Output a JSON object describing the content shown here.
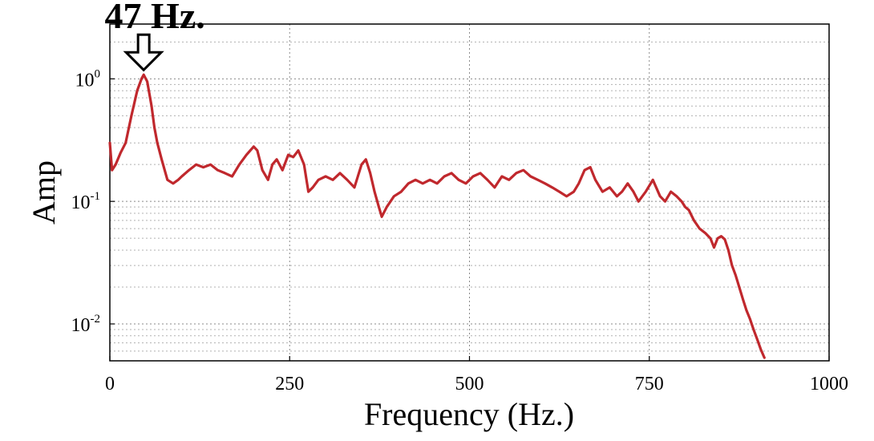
{
  "chart_data": {
    "type": "line",
    "title": "",
    "xlabel": "Frequency (Hz.)",
    "ylabel": "Amp",
    "xlim": [
      0,
      1000
    ],
    "ylim": [
      0.005,
      2.8
    ],
    "y_scale": "log",
    "grid": true,
    "x_ticks": [
      0,
      250,
      500,
      750,
      1000
    ],
    "x_tick_labels": [
      "0",
      "250",
      "500",
      "750",
      "1000"
    ],
    "y_ticks": [
      {
        "value": 1,
        "base": "10",
        "exp": "0"
      },
      {
        "value": 0.1,
        "base": "10",
        "exp": "-1"
      },
      {
        "value": 0.01,
        "base": "10",
        "exp": "-2"
      }
    ],
    "series": [
      {
        "color": "#c0282d",
        "x": [
          0,
          3,
          8,
          15,
          22,
          30,
          38,
          44,
          47,
          52,
          58,
          62,
          66,
          72,
          80,
          88,
          95,
          100,
          110,
          120,
          130,
          140,
          150,
          160,
          170,
          180,
          190,
          200,
          205,
          212,
          220,
          226,
          232,
          240,
          248,
          255,
          262,
          270,
          276,
          282,
          290,
          300,
          310,
          320,
          330,
          340,
          350,
          356,
          362,
          368,
          374,
          378,
          385,
          395,
          405,
          415,
          425,
          435,
          445,
          455,
          465,
          475,
          485,
          495,
          505,
          515,
          525,
          535,
          545,
          555,
          565,
          575,
          585,
          595,
          605,
          615,
          625,
          635,
          645,
          652,
          660,
          668,
          675,
          685,
          695,
          705,
          712,
          720,
          728,
          735,
          745,
          755,
          765,
          772,
          780,
          788,
          795,
          800,
          805,
          812,
          820,
          828,
          835,
          840,
          845,
          850,
          855,
          860,
          865,
          870,
          875,
          880,
          885,
          890,
          895,
          900,
          905,
          910
        ],
        "y": [
          0.3,
          0.18,
          0.2,
          0.25,
          0.3,
          0.5,
          0.8,
          1.0,
          1.08,
          0.95,
          0.6,
          0.4,
          0.3,
          0.22,
          0.15,
          0.14,
          0.15,
          0.16,
          0.18,
          0.2,
          0.19,
          0.2,
          0.18,
          0.17,
          0.16,
          0.2,
          0.24,
          0.28,
          0.26,
          0.18,
          0.15,
          0.2,
          0.22,
          0.18,
          0.24,
          0.23,
          0.26,
          0.2,
          0.12,
          0.13,
          0.15,
          0.16,
          0.15,
          0.17,
          0.15,
          0.13,
          0.2,
          0.22,
          0.17,
          0.12,
          0.09,
          0.075,
          0.09,
          0.11,
          0.12,
          0.14,
          0.15,
          0.14,
          0.15,
          0.14,
          0.16,
          0.17,
          0.15,
          0.14,
          0.16,
          0.17,
          0.15,
          0.13,
          0.16,
          0.15,
          0.17,
          0.18,
          0.16,
          0.15,
          0.14,
          0.13,
          0.12,
          0.11,
          0.12,
          0.14,
          0.18,
          0.19,
          0.15,
          0.12,
          0.13,
          0.11,
          0.12,
          0.14,
          0.12,
          0.1,
          0.12,
          0.15,
          0.11,
          0.1,
          0.12,
          0.11,
          0.1,
          0.09,
          0.085,
          0.07,
          0.06,
          0.055,
          0.05,
          0.042,
          0.05,
          0.052,
          0.049,
          0.04,
          0.03,
          0.025,
          0.02,
          0.016,
          0.013,
          0.011,
          0.009,
          0.0075,
          0.0062,
          0.0053
        ]
      }
    ],
    "annotations": [
      {
        "text": "47 Hz.",
        "x": 47,
        "y": 1.08,
        "arrow": "down"
      }
    ]
  }
}
